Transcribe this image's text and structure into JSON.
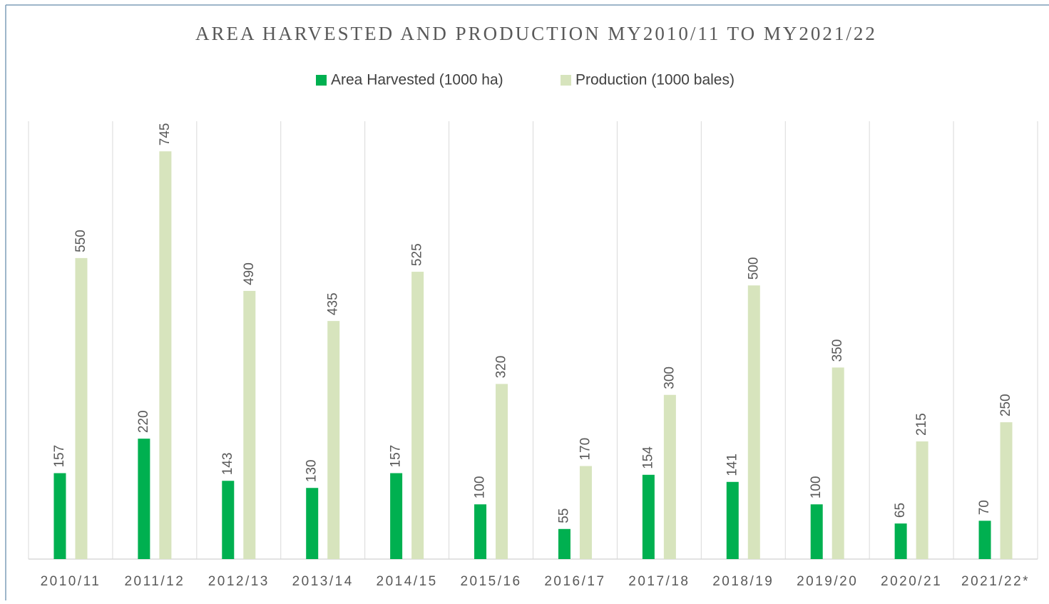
{
  "chart_data": {
    "type": "bar",
    "title": "AREA HARVESTED AND PRODUCTION MY2010/11 TO MY2021/22",
    "categories": [
      "2010/11",
      "2011/12",
      "2012/13",
      "2013/14",
      "2014/15",
      "2015/16",
      "2016/17",
      "2017/18",
      "2018/19",
      "2019/20",
      "2020/21",
      "2021/22*"
    ],
    "series": [
      {
        "name": "Area Harvested (1000 ha)",
        "color": "#00b050",
        "values": [
          157,
          220,
          143,
          130,
          157,
          100,
          55,
          154,
          141,
          100,
          65,
          70
        ]
      },
      {
        "name": "Production (1000 bales)",
        "color": "#d7e4bd",
        "values": [
          550,
          745,
          490,
          435,
          525,
          320,
          170,
          300,
          500,
          350,
          215,
          250
        ]
      }
    ],
    "ylim": [
      0,
      800
    ],
    "legend": "top",
    "data_labels": true
  }
}
